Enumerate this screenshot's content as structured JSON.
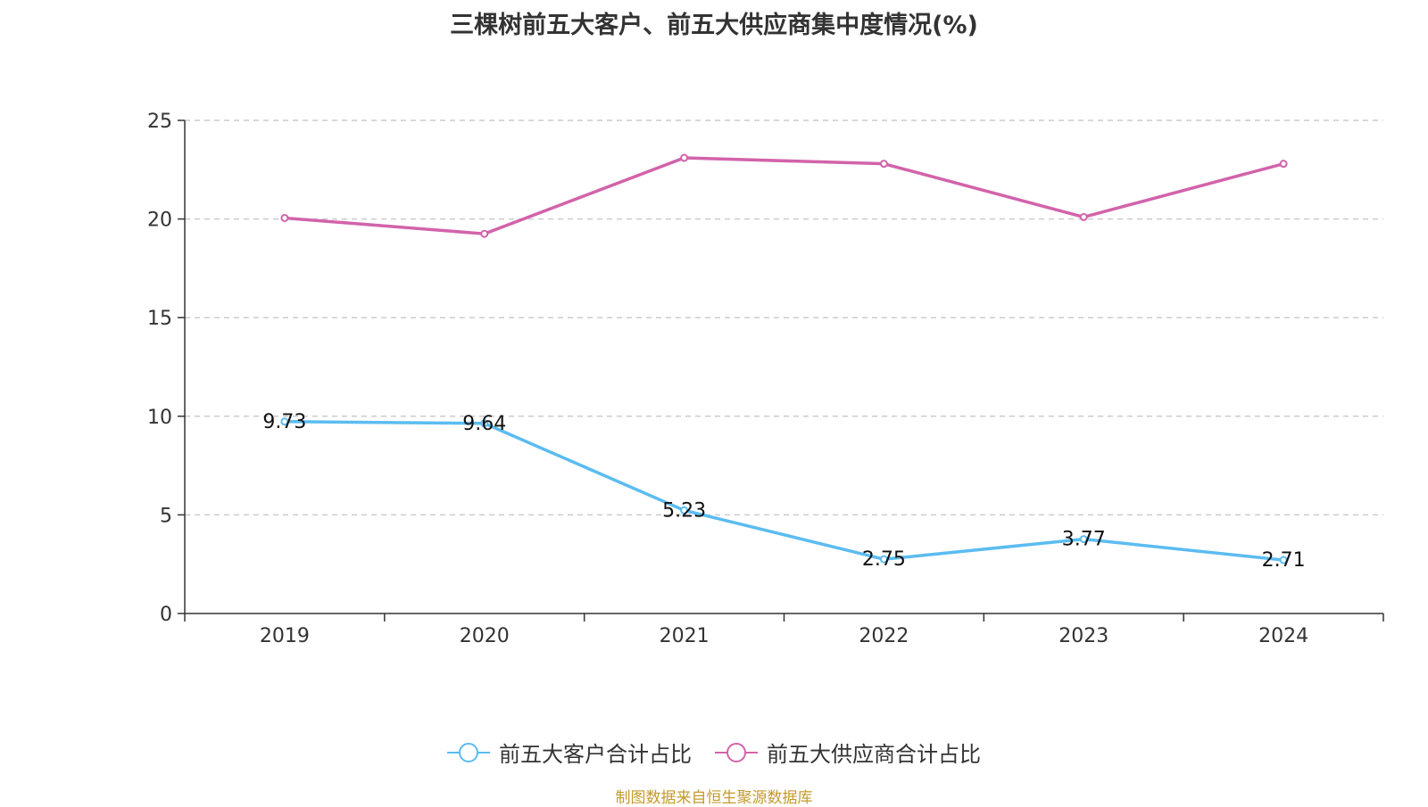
{
  "title": "三棵树前五大客户、前五大供应商集中度情况(%)",
  "source": "制图数据来自恒生聚源数据库",
  "chart_data": {
    "type": "line",
    "categories": [
      "2019",
      "2020",
      "2021",
      "2022",
      "2023",
      "2024"
    ],
    "ylim": [
      0,
      25
    ],
    "yticks": [
      0,
      5,
      10,
      15,
      20,
      25
    ],
    "grid": true,
    "legend_position": "bottom",
    "series": [
      {
        "name": "前五大客户合计占比",
        "color": "#5bbcf0",
        "values": [
          9.73,
          9.64,
          5.23,
          2.75,
          3.77,
          2.71
        ],
        "labels_shown": true
      },
      {
        "name": "前五大供应商合计占比",
        "color": "#d263aa",
        "values": [
          20.05,
          19.25,
          23.1,
          22.8,
          20.1,
          22.8
        ],
        "labels_shown": false
      }
    ]
  }
}
